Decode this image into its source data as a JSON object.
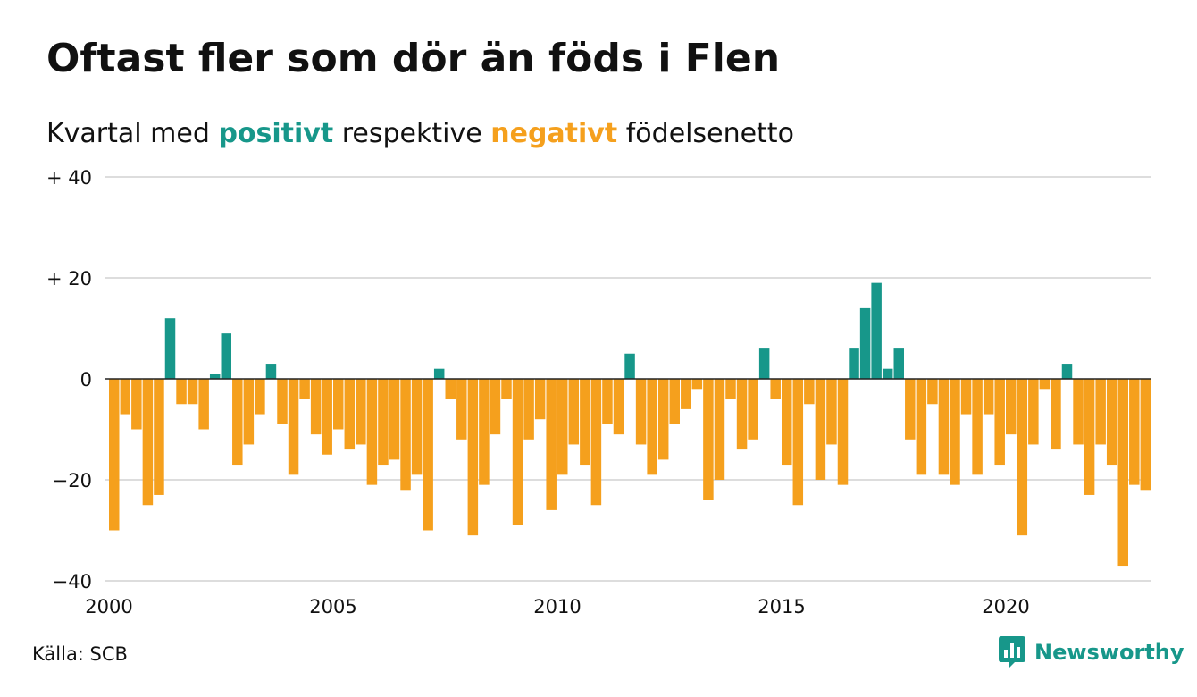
{
  "header": {
    "title": "Oftast fler som dör än föds i Flen",
    "subtitle_prefix": "Kvartal med",
    "subtitle_pos": "positivt",
    "subtitle_mid": "respektive",
    "subtitle_neg": "negativt",
    "subtitle_suffix": "födelsenetto"
  },
  "footer": {
    "source": "Källa: SCB",
    "brand": "Newsworthy",
    "brand_icon": "bar-chart-logo-icon"
  },
  "colors": {
    "positive": "#17978a",
    "negative": "#f5a01d",
    "grid": "#dddddd",
    "zero_line": "#222222"
  },
  "chart_data": {
    "type": "bar",
    "title": "Oftast fler som dör än föds i Flen",
    "subtitle": "Kvartal med positivt respektive negativt födelsenetto",
    "xlabel": "",
    "ylabel": "",
    "x_start_year": 2000,
    "periods_per_year": 4,
    "x_ticks": [
      2000,
      2005,
      2010,
      2015,
      2020
    ],
    "x_tick_labels": [
      "2000",
      "2005",
      "2010",
      "2015",
      "2020"
    ],
    "ylim": [
      -40,
      40
    ],
    "y_ticks": [
      -40,
      -20,
      0,
      20,
      40
    ],
    "y_tick_labels": [
      "−40",
      "−20",
      "0",
      "+ 20",
      "+ 40"
    ],
    "grid": true,
    "legend": "none",
    "values": [
      -30,
      -7,
      -10,
      -25,
      -23,
      12,
      -5,
      -5,
      -10,
      1,
      9,
      -17,
      -13,
      -7,
      3,
      -9,
      -19,
      -4,
      -11,
      -15,
      -10,
      -14,
      -13,
      -21,
      -17,
      -16,
      -22,
      -19,
      -30,
      2,
      -4,
      -12,
      -31,
      -21,
      -11,
      -4,
      -29,
      -12,
      -8,
      -26,
      -19,
      -13,
      -17,
      -25,
      -9,
      -11,
      5,
      -13,
      -19,
      -16,
      -9,
      -6,
      -2,
      -24,
      -20,
      -4,
      -14,
      -12,
      6,
      -4,
      -17,
      -25,
      -5,
      -20,
      -13,
      -21,
      6,
      14,
      19,
      2,
      6,
      -12,
      -19,
      -5,
      -19,
      -21,
      -7,
      -19,
      -7,
      -17,
      -11,
      -31,
      -13,
      -2,
      -14,
      3,
      -13,
      -23,
      -13,
      -17,
      -37,
      -21,
      -22
    ]
  }
}
